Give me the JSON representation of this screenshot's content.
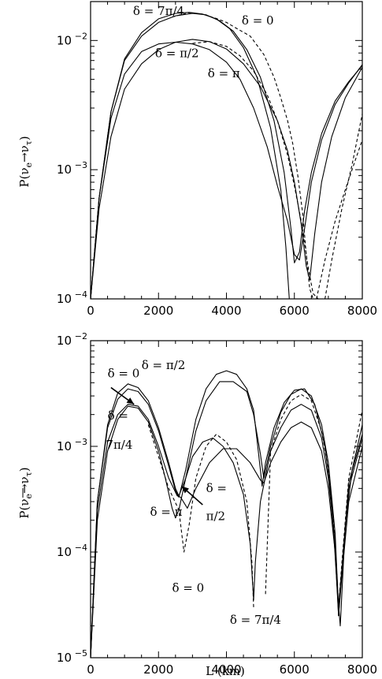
{
  "chart_data": [
    {
      "type": "line",
      "title": "",
      "xlabel": "",
      "ylabel_parts": {
        "base": "P(ν",
        "sub1": "e",
        "arrow": "→ν",
        "sub2": "τ",
        "close": ")"
      },
      "xlim": [
        0,
        8000
      ],
      "ylim": [
        0.0001,
        0.02
      ],
      "yscale": "log",
      "xticks": [
        0,
        2000,
        4000,
        6000,
        8000
      ],
      "xtick_labels": [
        "0",
        "2000",
        "4000",
        "6000",
        "8000"
      ],
      "ytick_labels": [
        {
          "value": 0.01,
          "base": "10",
          "exp": "−2"
        },
        {
          "value": 0.001,
          "base": "10",
          "exp": "−3"
        },
        {
          "value": 0.0001,
          "base": "10",
          "exp": "−4"
        }
      ],
      "annotations": [
        {
          "text": "δ = 7π/4",
          "x": 1250,
          "y": 0.0158
        },
        {
          "text": "δ = 0",
          "x": 4450,
          "y": 0.0133
        },
        {
          "text": "δ = π/2",
          "x": 1900,
          "y": 0.0074
        },
        {
          "text": "δ = π",
          "x": 3450,
          "y": 0.0052
        }
      ],
      "series": [
        {
          "style": "solid",
          "x": [
            0,
            250,
            600,
            1000,
            1500,
            2000,
            2500,
            2900,
            3300,
            3700,
            4100,
            4500,
            4900,
            5300,
            5600,
            5750,
            5850
          ],
          "y": [
            0.0001,
            0.0006,
            0.0028,
            0.0072,
            0.0115,
            0.0147,
            0.0162,
            0.0165,
            0.016,
            0.0147,
            0.0123,
            0.0088,
            0.0052,
            0.0021,
            0.0007,
            0.00025,
            0.0001
          ]
        },
        {
          "style": "solid",
          "x": [
            0,
            250,
            600,
            1000,
            1500,
            2000,
            2500,
            3000,
            3400,
            3800,
            4200,
            4600,
            5000,
            5400,
            5700,
            5900,
            6000,
            6150,
            6300,
            6500,
            6800,
            7200,
            7600,
            8000
          ],
          "y": [
            0.0001,
            0.0006,
            0.0028,
            0.007,
            0.0108,
            0.0138,
            0.0155,
            0.0162,
            0.0158,
            0.0142,
            0.0118,
            0.0085,
            0.0052,
            0.0024,
            0.00095,
            0.00035,
            0.00019,
            0.00023,
            0.00048,
            0.00095,
            0.0019,
            0.0034,
            0.0048,
            0.0064
          ]
        },
        {
          "style": "solid",
          "x": [
            0,
            250,
            600,
            1000,
            1500,
            2000,
            2500,
            3000,
            3500,
            4000,
            4400,
            4800,
            5200,
            5500,
            5800,
            6000,
            6150,
            6300,
            6500,
            6800,
            7200,
            7600,
            8000
          ],
          "y": [
            0.0001,
            0.0006,
            0.0025,
            0.0055,
            0.0082,
            0.0094,
            0.0097,
            0.0094,
            0.0085,
            0.0068,
            0.005,
            0.003,
            0.0015,
            0.00075,
            0.0004,
            0.00022,
            0.0002,
            0.00035,
            0.0008,
            0.0017,
            0.0032,
            0.0047,
            0.0065
          ]
        },
        {
          "style": "solid",
          "x": [
            0,
            250,
            600,
            1000,
            1500,
            2000,
            2500,
            3000,
            3500,
            4000,
            4500,
            5000,
            5500,
            5800,
            6000,
            6200,
            6350,
            6450,
            6600,
            6800,
            7100,
            7500,
            8000
          ],
          "y": [
            0.0001,
            0.0005,
            0.0018,
            0.0042,
            0.0066,
            0.0085,
            0.0097,
            0.0102,
            0.0098,
            0.0086,
            0.0066,
            0.0044,
            0.0024,
            0.0014,
            0.0008,
            0.00038,
            0.00018,
            0.00014,
            0.00032,
            0.0008,
            0.0018,
            0.0036,
            0.0062
          ]
        },
        {
          "style": "dashed",
          "x": [
            2400,
            2900,
            3300,
            3700,
            4000,
            4300,
            4700,
            5100,
            5400,
            5600,
            5800,
            5950,
            6100,
            6250,
            6350,
            6450,
            6550
          ],
          "y": [
            0.0152,
            0.0164,
            0.016,
            0.0148,
            0.0138,
            0.0124,
            0.0108,
            0.0078,
            0.0052,
            0.0036,
            0.0024,
            0.0016,
            0.0009,
            0.00045,
            0.00022,
            0.00012,
            0.0001
          ]
        },
        {
          "style": "dashed",
          "x": [
            3000,
            3500,
            4000,
            4400,
            4800,
            5200,
            5500,
            5800,
            6000,
            6200,
            6400,
            6550,
            6700
          ],
          "y": [
            0.0095,
            0.0098,
            0.009,
            0.0076,
            0.0058,
            0.0038,
            0.0024,
            0.0013,
            0.00075,
            0.0004,
            0.00018,
            0.00011,
            0.0001
          ]
        },
        {
          "style": "dashed",
          "x": [
            6650,
            6900,
            7200,
            7500,
            7800,
            8000
          ],
          "y": [
            0.0001,
            0.0002,
            0.0004,
            0.0007,
            0.0012,
            0.0017
          ]
        },
        {
          "style": "dashed",
          "x": [
            6900,
            7100,
            7400,
            7700,
            8000
          ],
          "y": [
            0.0001,
            0.0002,
            0.0005,
            0.0011,
            0.0027
          ]
        }
      ]
    },
    {
      "type": "line",
      "title": "",
      "xlabel": "L (km)",
      "ylabel_parts": {
        "base": "P(ν",
        "sub1": "e",
        "arrow": "→ν",
        "sub2": "τ",
        "close": ")"
      },
      "xlim": [
        0,
        8000
      ],
      "ylim": [
        1e-05,
        0.01
      ],
      "yscale": "log",
      "xticks": [
        0,
        2000,
        4000,
        6000,
        8000
      ],
      "xtick_labels": [
        "0",
        "2000",
        "4000",
        "6000",
        "8000"
      ],
      "ytick_labels": [
        {
          "value": 0.01,
          "base": "10",
          "exp": "−2"
        },
        {
          "value": 0.001,
          "base": "10",
          "exp": "−3"
        },
        {
          "value": 0.0001,
          "base": "10",
          "exp": "−4"
        },
        {
          "value": 1e-05,
          "base": "10",
          "exp": "−5"
        }
      ],
      "annotations": [
        {
          "text": "δ = π/2",
          "x": 1500,
          "y": 0.0054
        },
        {
          "text": "δ = 0",
          "x": 500,
          "y": 0.0045
        },
        {
          "text": "δ =",
          "x": 500,
          "y": 0.0018
        },
        {
          "text": "7π/4",
          "x": 450,
          "y": 0.00095
        },
        {
          "text": "δ = π",
          "x": 1750,
          "y": 0.00022
        },
        {
          "text": "δ =",
          "x": 3400,
          "y": 0.00037
        },
        {
          "text": "π/2",
          "x": 3400,
          "y": 0.0002
        },
        {
          "text": "δ = 0",
          "x": 2400,
          "y": 4.2e-05
        },
        {
          "text": "δ = 7π/4",
          "x": 4100,
          "y": 2.1e-05
        }
      ],
      "arrows": [
        {
          "from": [
            600,
            0.0036
          ],
          "to": [
            1280,
            0.0025
          ]
        },
        {
          "from": [
            3300,
            0.00028
          ],
          "to": [
            2680,
            0.00042
          ]
        }
      ],
      "series": [
        {
          "style": "solid",
          "x": [
            0,
            200,
            500,
            800,
            1100,
            1400,
            1700,
            2000,
            2300,
            2500,
            2600,
            2800,
            3100,
            3400,
            3700,
            4000,
            4300,
            4600,
            4800,
            5000,
            5050,
            5150,
            5400,
            5700,
            6000,
            6300,
            6600,
            6900,
            7100,
            7250,
            7350,
            7500,
            7700,
            8000
          ],
          "y": [
            1e-05,
            0.0003,
            0.0015,
            0.0028,
            0.0035,
            0.0033,
            0.0025,
            0.0014,
            0.00065,
            0.00038,
            0.00033,
            0.0006,
            0.0018,
            0.0035,
            0.0048,
            0.0052,
            0.0048,
            0.0035,
            0.0022,
            0.0006,
            0.00042,
            0.0007,
            0.0015,
            0.0026,
            0.0034,
            0.0035,
            0.0025,
            0.001,
            0.0003,
            5e-05,
            2e-05,
            0.00018,
            0.0006,
            0.0016
          ]
        },
        {
          "style": "solid",
          "x": [
            0,
            200,
            500,
            800,
            1100,
            1400,
            1700,
            2000,
            2300,
            2500,
            2600,
            2800,
            3100,
            3400,
            3800,
            4200,
            4600,
            4800,
            5000,
            5100,
            5300,
            5600,
            5900,
            6200,
            6500,
            6800,
            7000,
            7200,
            7300,
            7400,
            7600,
            8000
          ],
          "y": [
            1e-05,
            0.0003,
            0.0016,
            0.0032,
            0.0039,
            0.0036,
            0.0027,
            0.0015,
            0.0007,
            0.0004,
            0.00034,
            0.0005,
            0.0014,
            0.0027,
            0.0041,
            0.0041,
            0.0033,
            0.002,
            0.00085,
            0.0005,
            0.001,
            0.0021,
            0.0031,
            0.0035,
            0.003,
            0.0016,
            0.0007,
            0.00015,
            3e-05,
            7e-05,
            0.00045,
            0.0013
          ]
        },
        {
          "style": "solid",
          "x": [
            0,
            200,
            500,
            800,
            1100,
            1400,
            1700,
            2000,
            2200,
            2400,
            2500,
            2600,
            2800,
            3000,
            3300,
            3600,
            3900,
            4200,
            4500,
            4700,
            4800,
            4850,
            5000,
            5300,
            5600,
            5900,
            6200,
            6500,
            6800,
            7000,
            7200,
            7300,
            7400,
            7600,
            8000
          ],
          "y": [
            1e-05,
            0.0002,
            0.0009,
            0.0018,
            0.0024,
            0.0023,
            0.0017,
            0.0009,
            0.0005,
            0.00026,
            0.00021,
            0.00025,
            0.0005,
            0.0008,
            0.0011,
            0.0012,
            0.001,
            0.0007,
            0.00035,
            0.00012,
            3.5e-05,
            8e-05,
            0.0003,
            0.0009,
            0.0015,
            0.0022,
            0.0025,
            0.0022,
            0.0012,
            0.0005,
            0.00012,
            2.5e-05,
            7e-05,
            0.0004,
            0.0012
          ]
        },
        {
          "style": "solid",
          "x": [
            0,
            200,
            500,
            800,
            1100,
            1400,
            1700,
            2000,
            2300,
            2550,
            2650,
            2850,
            3100,
            3500,
            3900,
            4300,
            4700,
            5000,
            5100,
            5300,
            5600,
            5900,
            6200,
            6500,
            6800,
            7000,
            7200,
            7300,
            7400,
            7600,
            8000
          ],
          "y": [
            1e-05,
            0.00025,
            0.0011,
            0.002,
            0.0025,
            0.0024,
            0.0018,
            0.001,
            0.0005,
            0.00034,
            0.00033,
            0.00026,
            0.0004,
            0.0007,
            0.00095,
            0.00095,
            0.0007,
            0.00048,
            0.00045,
            0.0007,
            0.0011,
            0.0015,
            0.0017,
            0.0015,
            0.0009,
            0.0004,
            0.0001,
            2.5e-05,
            6e-05,
            0.0003,
            0.001
          ]
        },
        {
          "style": "dashed",
          "x": [
            1700,
            2000,
            2300,
            2600,
            2750,
            2900,
            3100,
            3400,
            3700,
            4000,
            4300,
            4600,
            4750,
            4800
          ],
          "y": [
            0.0016,
            0.0008,
            0.0004,
            0.00025,
            0.0001,
            0.00018,
            0.0005,
            0.001,
            0.0013,
            0.0011,
            0.00075,
            0.0003,
            8e-05,
            3e-05
          ]
        },
        {
          "style": "dashed",
          "x": [
            5150,
            5300,
            5600,
            5900,
            6200,
            6500,
            6800,
            7000,
            7200,
            7300,
            7400,
            7600,
            8000
          ],
          "y": [
            4e-05,
            0.0009,
            0.0018,
            0.0027,
            0.0031,
            0.0027,
            0.0014,
            0.0006,
            0.00013,
            3e-05,
            8e-05,
            0.0005,
            0.0022
          ]
        }
      ]
    }
  ]
}
